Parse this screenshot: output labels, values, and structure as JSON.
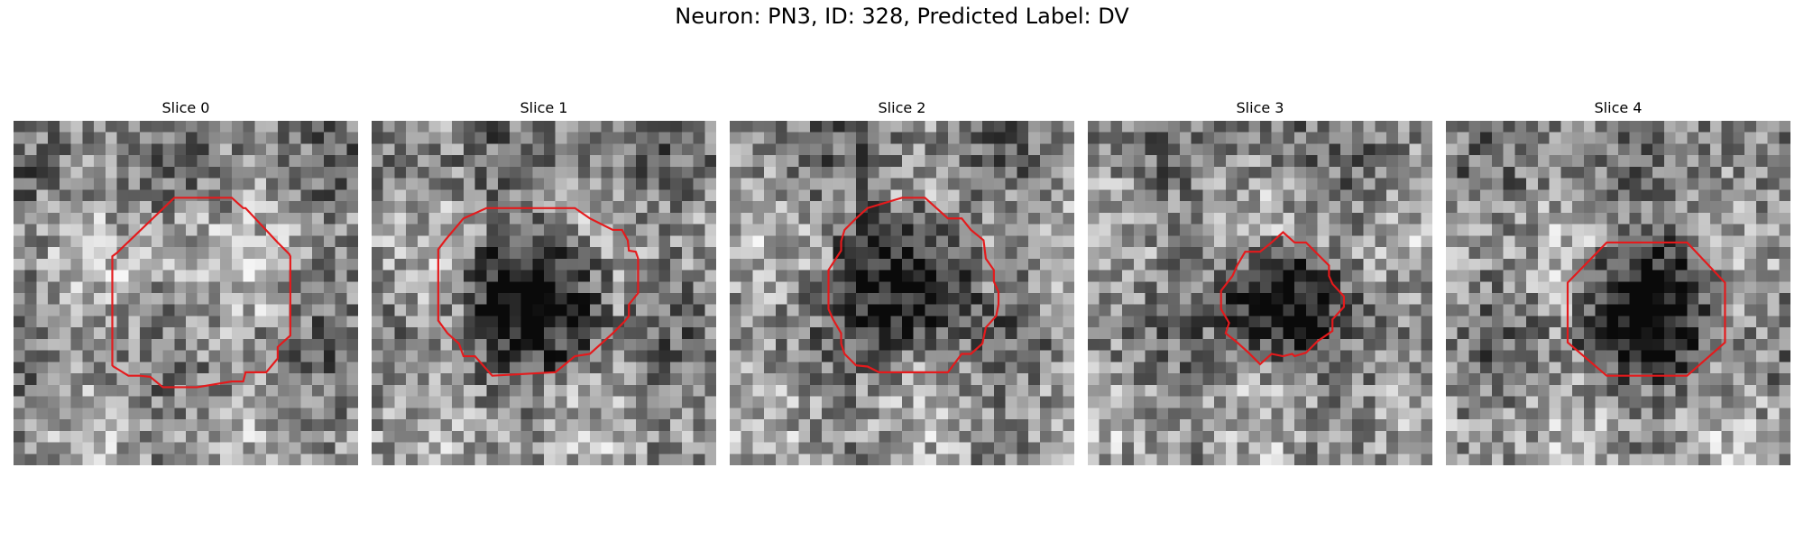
{
  "figure": {
    "title": "Neuron: PN3, ID: 328, Predicted Label: DV",
    "contour_color": "#e41a1c"
  },
  "panels": [
    {
      "label": "Slice 0",
      "seed": 11,
      "cell": "light"
    },
    {
      "label": "Slice 1",
      "seed": 27,
      "cell": "dark"
    },
    {
      "label": "Slice 2",
      "seed": 43,
      "cell": "dark"
    },
    {
      "label": "Slice 3",
      "seed": 59,
      "cell": "dark"
    },
    {
      "label": "Slice 4",
      "seed": 77,
      "cell": "dark"
    }
  ]
}
